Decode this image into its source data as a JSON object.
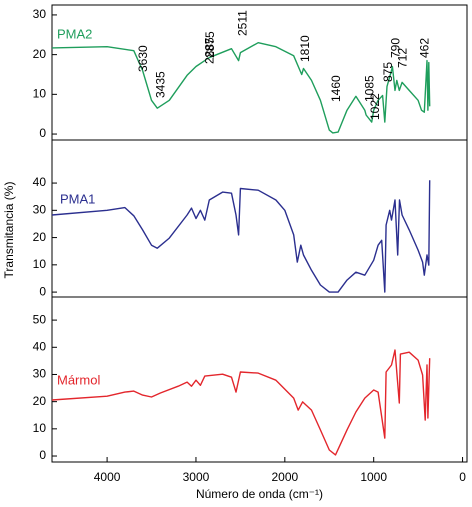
{
  "chart_data": [
    {
      "type": "line",
      "x": [
        4620,
        4000,
        3700,
        3600,
        3500,
        3435,
        3300,
        3100,
        3000,
        2900,
        2875,
        2800,
        2600,
        2520,
        2500,
        2300,
        2100,
        1900,
        1810,
        1790,
        1700,
        1600,
        1500,
        1460,
        1400,
        1300,
        1200,
        1100,
        1085,
        1022,
        1000,
        950,
        900,
        875,
        850,
        800,
        790,
        760,
        740,
        712,
        680,
        600,
        500,
        462,
        430,
        400,
        390,
        380,
        370
      ],
      "series": [
        {
          "name": "PMA2",
          "color": "#1f9e5c",
          "values": [
            21.7,
            22,
            21,
            16,
            8.5,
            6.5,
            8.5,
            14.8,
            17,
            18.5,
            19,
            19.7,
            21.5,
            18.5,
            20.5,
            23,
            22,
            19.7,
            15,
            16.5,
            13.5,
            8.5,
            1,
            0.3,
            0.5,
            6,
            9.5,
            6,
            4.8,
            3,
            6,
            8.5,
            9.7,
            3,
            12,
            16,
            17,
            11,
            13.5,
            11,
            13,
            11,
            8.5,
            6,
            5.5,
            18.5,
            6,
            18,
            7
          ]
        }
      ],
      "annotations": [
        3630,
        3435,
        2885,
        2875,
        2511,
        1810,
        1460,
        1085,
        1022,
        875,
        790,
        712,
        462
      ],
      "xlim": [
        4620,
        -50
      ],
      "ylim": [
        -1.5,
        32.5
      ],
      "yticks": [
        0,
        10,
        20,
        30
      ]
    },
    {
      "type": "line",
      "x": [
        4620,
        4000,
        3800,
        3700,
        3600,
        3500,
        3435,
        3300,
        3100,
        3050,
        3000,
        2950,
        2900,
        2850,
        2700,
        2600,
        2550,
        2520,
        2500,
        2300,
        2100,
        2000,
        1900,
        1860,
        1820,
        1790,
        1700,
        1600,
        1500,
        1400,
        1300,
        1200,
        1100,
        1000,
        950,
        910,
        875,
        860,
        820,
        800,
        760,
        730,
        710,
        680,
        600,
        500,
        450,
        430,
        400,
        380,
        370
      ],
      "series": [
        {
          "name": "PMA1",
          "color": "#2b2f8f",
          "values": [
            28.3,
            30,
            31,
            28,
            22.8,
            17.2,
            16.1,
            19.8,
            28.3,
            30.8,
            27,
            30,
            26.4,
            33.8,
            36.7,
            36.3,
            28.3,
            21,
            38,
            37.4,
            33.8,
            30,
            21,
            11,
            17.2,
            13.6,
            8,
            2.6,
            0,
            0,
            4.4,
            7.3,
            6.2,
            11.7,
            17.2,
            19,
            0,
            24.6,
            30,
            26.4,
            33.8,
            13.6,
            33.8,
            28.3,
            22.8,
            15.4,
            11,
            6.2,
            13.6,
            9.9,
            41
          ]
        }
      ],
      "ylabel": "Transmitancia (%)",
      "xlim": [
        4620,
        -50
      ],
      "ylim": [
        -1.8,
        55.8
      ],
      "yticks": [
        0,
        10,
        20,
        30,
        40
      ]
    },
    {
      "type": "line",
      "x": [
        4620,
        4000,
        3800,
        3700,
        3600,
        3500,
        3400,
        3200,
        3100,
        3050,
        3000,
        2950,
        2900,
        2700,
        2600,
        2550,
        2500,
        2300,
        2100,
        1900,
        1850,
        1800,
        1700,
        1600,
        1500,
        1430,
        1300,
        1200,
        1100,
        1000,
        950,
        875,
        860,
        800,
        760,
        712,
        700,
        600,
        500,
        450,
        420,
        400,
        390,
        370
      ],
      "series": [
        {
          "name": "Mármol",
          "color": "#e3262c",
          "values": [
            20.6,
            22,
            23.5,
            23.9,
            22.4,
            21.7,
            23.2,
            25.7,
            27.2,
            25.7,
            27.9,
            26,
            29.4,
            30.1,
            29,
            23.5,
            30.9,
            30.5,
            27.9,
            21.3,
            16.9,
            19.9,
            16.9,
            9.6,
            2.2,
            0.4,
            9.6,
            16.2,
            21.3,
            24.3,
            23.5,
            6.6,
            30.9,
            33.5,
            39,
            19.5,
            37.5,
            38.2,
            35.3,
            29.8,
            13.2,
            33.5,
            14,
            36
          ]
        }
      ],
      "xlabel": "Número de onda (cm⁻¹)",
      "xlim": [
        4620,
        -50
      ],
      "ylim": [
        -2.2,
        58.5
      ],
      "yticks": [
        0,
        10,
        20,
        30,
        40,
        50
      ],
      "xticks": [
        4000,
        3000,
        2000,
        1000,
        0
      ]
    }
  ]
}
